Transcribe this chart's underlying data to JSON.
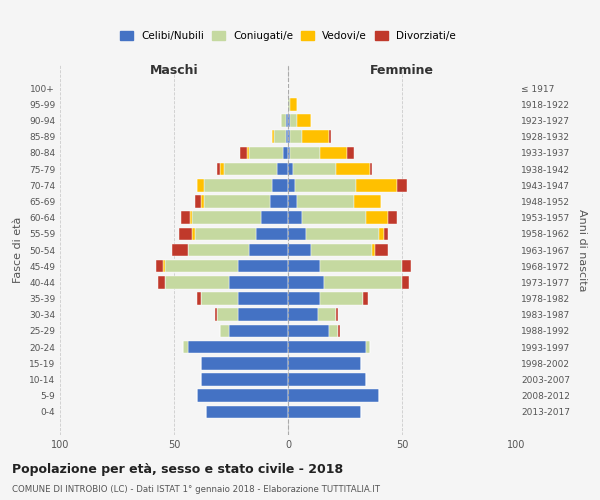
{
  "age_groups": [
    "0-4",
    "5-9",
    "10-14",
    "15-19",
    "20-24",
    "25-29",
    "30-34",
    "35-39",
    "40-44",
    "45-49",
    "50-54",
    "55-59",
    "60-64",
    "65-69",
    "70-74",
    "75-79",
    "80-84",
    "85-89",
    "90-94",
    "95-99",
    "100+"
  ],
  "birth_years": [
    "2013-2017",
    "2008-2012",
    "2003-2007",
    "1998-2002",
    "1993-1997",
    "1988-1992",
    "1983-1987",
    "1978-1982",
    "1973-1977",
    "1968-1972",
    "1963-1967",
    "1958-1962",
    "1953-1957",
    "1948-1952",
    "1943-1947",
    "1938-1942",
    "1933-1937",
    "1928-1932",
    "1923-1927",
    "1918-1922",
    "≤ 1917"
  ],
  "maschi": {
    "celibi": [
      36,
      40,
      38,
      38,
      44,
      26,
      22,
      22,
      26,
      22,
      17,
      14,
      12,
      8,
      7,
      5,
      2,
      1,
      1,
      0,
      0
    ],
    "coniugati": [
      0,
      0,
      0,
      0,
      2,
      4,
      9,
      16,
      28,
      32,
      27,
      27,
      30,
      29,
      30,
      23,
      15,
      5,
      2,
      0,
      0
    ],
    "vedovi": [
      0,
      0,
      0,
      0,
      0,
      0,
      0,
      0,
      0,
      1,
      0,
      1,
      1,
      1,
      3,
      2,
      1,
      1,
      0,
      0,
      0
    ],
    "divorziati": [
      0,
      0,
      0,
      0,
      0,
      0,
      1,
      2,
      3,
      3,
      7,
      6,
      4,
      3,
      0,
      1,
      3,
      0,
      0,
      0,
      0
    ]
  },
  "femmine": {
    "nubili": [
      32,
      40,
      34,
      32,
      34,
      18,
      13,
      14,
      16,
      14,
      10,
      8,
      6,
      4,
      3,
      2,
      1,
      1,
      1,
      0,
      0
    ],
    "coniugate": [
      0,
      0,
      0,
      0,
      2,
      4,
      8,
      19,
      34,
      36,
      27,
      32,
      28,
      25,
      27,
      19,
      13,
      5,
      3,
      1,
      0
    ],
    "vedove": [
      0,
      0,
      0,
      0,
      0,
      0,
      0,
      0,
      0,
      0,
      1,
      2,
      10,
      12,
      18,
      15,
      12,
      12,
      6,
      3,
      0
    ],
    "divorziate": [
      0,
      0,
      0,
      0,
      0,
      1,
      1,
      2,
      3,
      4,
      6,
      2,
      4,
      0,
      4,
      1,
      3,
      1,
      0,
      0,
      0
    ]
  },
  "colors": {
    "celibi": "#4472c4",
    "coniugati": "#c5d9a0",
    "vedovi": "#ffc000",
    "divorziati": "#c0392b"
  },
  "title": "Popolazione per età, sesso e stato civile - 2018",
  "subtitle": "COMUNE DI INTROBIO (LC) - Dati ISTAT 1° gennaio 2018 - Elaborazione TUTTITALIA.IT",
  "xlabel_maschi": "Maschi",
  "xlabel_femmine": "Femmine",
  "ylabel": "Fasce di età",
  "ylabel_right": "Anni di nascita",
  "xlim": 100,
  "background_color": "#f5f5f5",
  "grid_color": "#cccccc"
}
